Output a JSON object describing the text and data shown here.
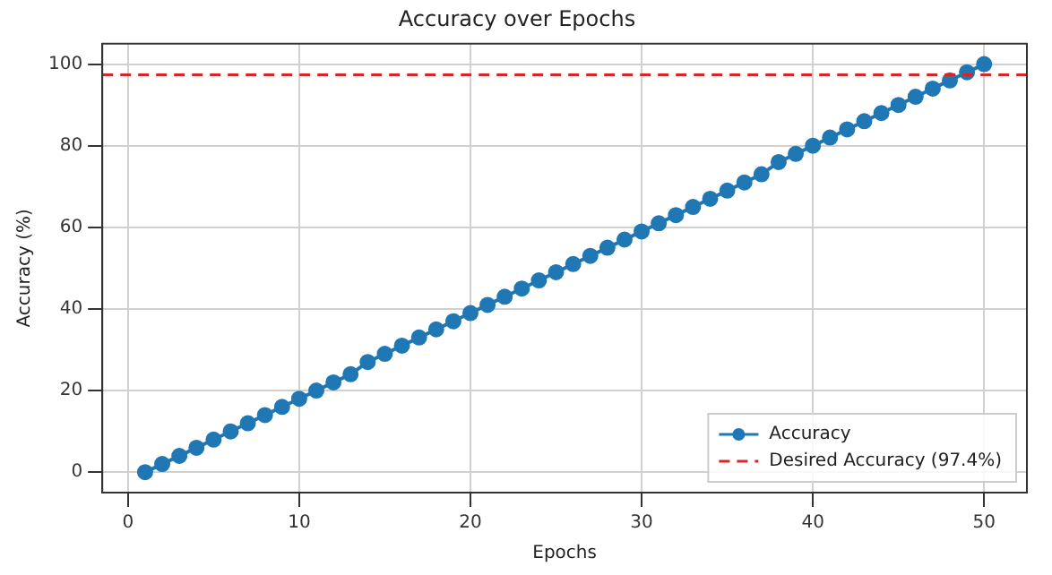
{
  "chart_data": {
    "type": "line",
    "title": "Accuracy over Epochs",
    "xlabel": "Epochs",
    "ylabel": "Accuracy (%)",
    "x": [
      1,
      2,
      3,
      4,
      5,
      6,
      7,
      8,
      9,
      10,
      11,
      12,
      13,
      14,
      15,
      16,
      17,
      18,
      19,
      20,
      21,
      22,
      23,
      24,
      25,
      26,
      27,
      28,
      29,
      30,
      31,
      32,
      33,
      34,
      35,
      36,
      37,
      38,
      39,
      40,
      41,
      42,
      43,
      44,
      45,
      46,
      47,
      48,
      49,
      50
    ],
    "series": [
      {
        "name": "Accuracy",
        "color": "#1f77b4",
        "values": [
          0,
          2,
          4,
          6,
          8,
          10,
          12,
          14,
          16,
          18,
          20,
          22,
          24,
          27,
          29,
          31,
          33,
          35,
          37,
          39,
          41,
          43,
          45,
          47,
          49,
          51,
          53,
          55,
          57,
          59,
          61,
          63,
          65,
          67,
          69,
          71,
          73,
          76,
          78,
          80,
          82,
          84,
          86,
          88,
          90,
          92,
          94,
          96,
          98,
          100
        ]
      }
    ],
    "ref_lines": [
      {
        "axis": "y",
        "value": 97.4,
        "label": "Desired Accuracy (97.4%)",
        "color": "#d62728",
        "line_style": "dashed"
      }
    ],
    "xlim": [
      -1.5,
      52.5
    ],
    "ylim": [
      -5,
      105
    ],
    "xticks": [
      0,
      10,
      20,
      30,
      40,
      50
    ],
    "yticks": [
      0,
      20,
      40,
      60,
      80,
      100
    ],
    "grid": true,
    "legend": "bottom right",
    "marker": "circle",
    "line_style": "solid"
  }
}
